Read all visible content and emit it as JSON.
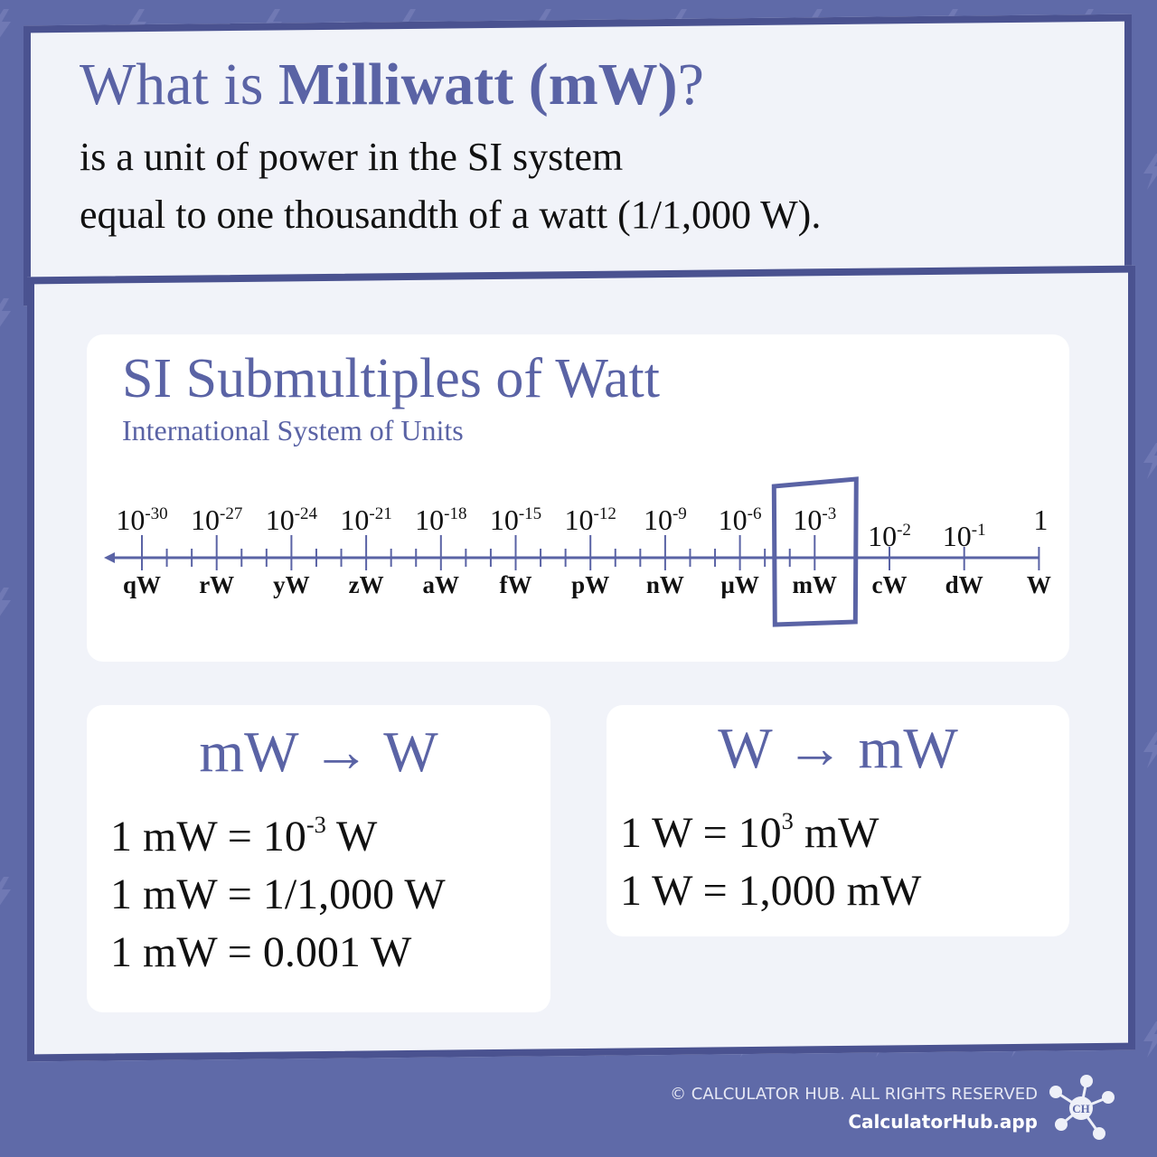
{
  "header": {
    "title_prefix": "What is ",
    "title_bold": "Milliwatt (mW)",
    "title_suffix": "?",
    "line1": "is a unit of power in the SI system",
    "line2": "equal to one thousandth of a watt (1/1,000 W)."
  },
  "scale": {
    "title": "SI Submultiples of Watt",
    "subtitle": "International System of Units",
    "highlight": "mW",
    "units": [
      {
        "base": "10",
        "exp": "-30",
        "symbol": "qW"
      },
      {
        "base": "10",
        "exp": "-27",
        "symbol": "rW"
      },
      {
        "base": "10",
        "exp": "-24",
        "symbol": "yW"
      },
      {
        "base": "10",
        "exp": "-21",
        "symbol": "zW"
      },
      {
        "base": "10",
        "exp": "-18",
        "symbol": "aW"
      },
      {
        "base": "10",
        "exp": "-15",
        "symbol": "fW"
      },
      {
        "base": "10",
        "exp": "-12",
        "symbol": "pW"
      },
      {
        "base": "10",
        "exp": "-9",
        "symbol": "nW"
      },
      {
        "base": "10",
        "exp": "-6",
        "symbol": "µW"
      },
      {
        "base": "10",
        "exp": "-3",
        "symbol": "mW"
      },
      {
        "base": "10",
        "exp": "-2",
        "symbol": "cW"
      },
      {
        "base": "10",
        "exp": "-1",
        "symbol": "dW"
      },
      {
        "base": "1",
        "exp": "",
        "symbol": "W"
      }
    ]
  },
  "mw_to_w": {
    "title": "mW → W",
    "lines": [
      {
        "pre": "1 mW = 10",
        "sup": "-3",
        "post": " W"
      },
      {
        "pre": "1 mW = 1/1,000 W",
        "sup": "",
        "post": ""
      },
      {
        "pre": "1 mW = 0.001 W",
        "sup": "",
        "post": ""
      }
    ]
  },
  "w_to_mw": {
    "title": "W → mW",
    "lines": [
      {
        "pre": "1 W = 10",
        "sup": "3",
        "post": " mW"
      },
      {
        "pre": "1 W = 1,000 mW",
        "sup": "",
        "post": ""
      }
    ]
  },
  "footer": {
    "copyright": "© CALCULATOR HUB. ALL RIGHTS RESERVED",
    "site": "CalculatorHub.app",
    "logo_text": "CH"
  },
  "colors": {
    "background": "#5f6aa8",
    "accent": "#5a63a5",
    "border": "#4a5290",
    "card": "#f1f3f9"
  }
}
